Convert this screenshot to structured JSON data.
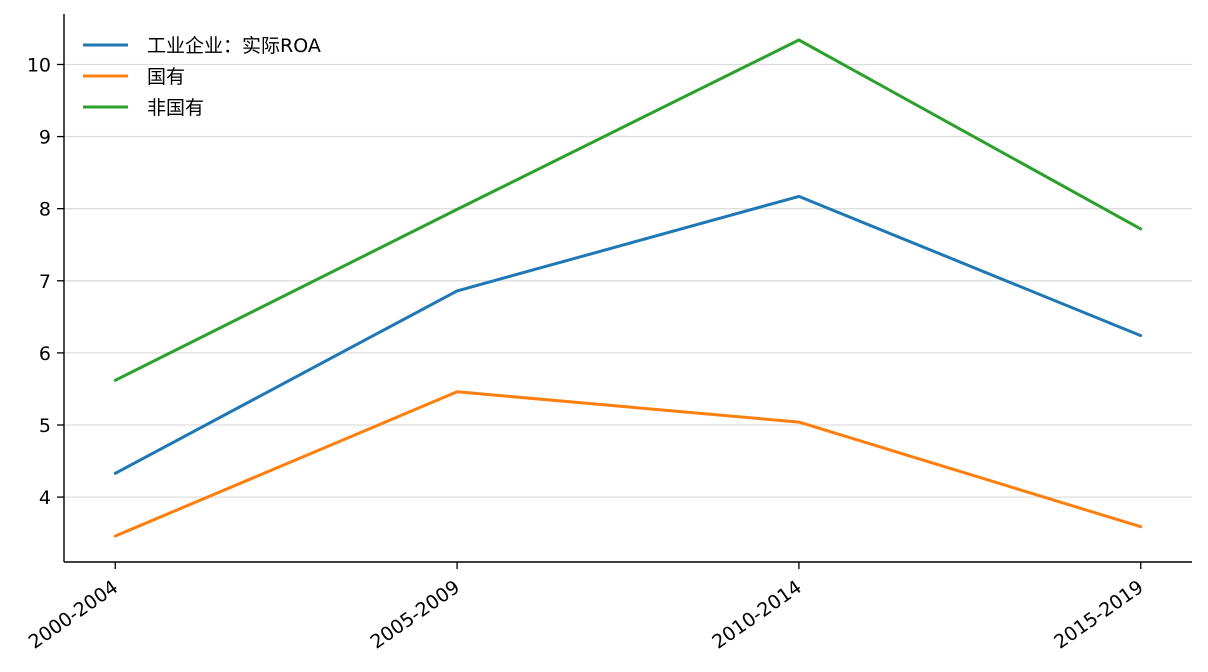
{
  "chart_data": {
    "type": "line",
    "title": "",
    "xlabel": "",
    "ylabel": "",
    "categories": [
      "2000-2004",
      "2005-2009",
      "2010-2014",
      "2015-2019"
    ],
    "ylim": [
      3.1,
      10.7
    ],
    "yticks": [
      4,
      5,
      6,
      7,
      8,
      9,
      10
    ],
    "grid": "horizontal",
    "legend_position": "top-left",
    "series": [
      {
        "name": "工业企业：实际ROA",
        "color": "#1f77b4",
        "values": [
          4.33,
          6.86,
          8.17,
          6.24
        ]
      },
      {
        "name": "国有",
        "color": "#ff7f0e",
        "values": [
          3.46,
          5.46,
          5.04,
          3.59
        ]
      },
      {
        "name": "非国有",
        "color": "#2ca02c",
        "values": [
          5.62,
          7.99,
          10.34,
          7.72
        ]
      }
    ]
  }
}
